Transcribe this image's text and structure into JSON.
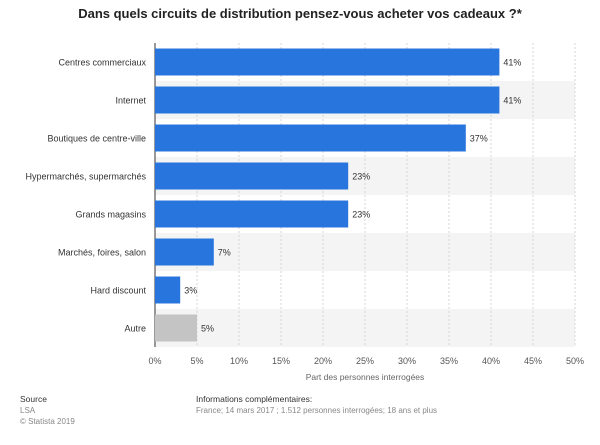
{
  "title": "Dans quels circuits de distribution pensez-vous acheter vos cadeaux ?*",
  "chart_data": {
    "type": "bar",
    "orientation": "horizontal",
    "title": "Dans quels circuits de distribution pensez-vous acheter vos cadeaux ?*",
    "xlabel": "Part des personnes interrogées",
    "ylabel": "",
    "categories": [
      "Centres commerciaux",
      "Internet",
      "Boutiques de centre-ville",
      "Hypermarchés, supermarchés",
      "Grands magasins",
      "Marchés, foires, salon",
      "Hard discount",
      "Autre"
    ],
    "values": [
      41,
      41,
      37,
      23,
      23,
      7,
      3,
      5
    ],
    "value_labels": [
      "41%",
      "41%",
      "37%",
      "23%",
      "23%",
      "7%",
      "3%",
      "5%"
    ],
    "bar_colors": [
      "#2876dd",
      "#2876dd",
      "#2876dd",
      "#2876dd",
      "#2876dd",
      "#2876dd",
      "#2876dd",
      "#c4c4c4"
    ],
    "xlim": [
      0,
      50
    ],
    "xticks": [
      0,
      5,
      10,
      15,
      20,
      25,
      30,
      35,
      40,
      45,
      50
    ],
    "xtick_labels": [
      "0%",
      "5%",
      "10%",
      "15%",
      "20%",
      "25%",
      "30%",
      "35%",
      "40%",
      "45%",
      "50%"
    ],
    "grid": true
  },
  "footer": {
    "source_heading": "Source",
    "source_lines": [
      "LSA",
      "© Statista 2019"
    ],
    "info_heading": "Informations complémentaires:",
    "info_text": "France; 14 mars 2017 ; 1.512 personnes interrogées; 18 ans et plus"
  }
}
